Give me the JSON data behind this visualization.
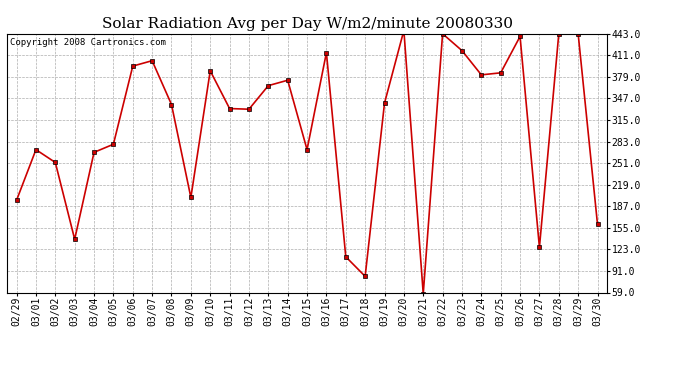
{
  "title": "Solar Radiation Avg per Day W/m2/minute 20080330",
  "copyright": "Copyright 2008 Cartronics.com",
  "dates": [
    "02/29",
    "03/01",
    "03/02",
    "03/03",
    "03/04",
    "03/05",
    "03/06",
    "03/07",
    "03/08",
    "03/09",
    "03/10",
    "03/11",
    "03/12",
    "03/13",
    "03/14",
    "03/15",
    "03/16",
    "03/17",
    "03/18",
    "03/19",
    "03/20",
    "03/21",
    "03/22",
    "03/23",
    "03/24",
    "03/25",
    "03/26",
    "03/27",
    "03/28",
    "03/29",
    "03/30"
  ],
  "values": [
    196,
    271,
    252,
    138,
    267,
    279,
    395,
    403,
    338,
    200,
    388,
    332,
    331,
    366,
    374,
    271,
    415,
    112,
    83,
    340,
    448,
    57,
    443,
    418,
    382,
    385,
    439,
    126,
    443,
    443,
    160
  ],
  "line_color": "#cc0000",
  "marker": "s",
  "marker_size": 3,
  "bg_color": "#ffffff",
  "plot_bg_color": "#ffffff",
  "grid_color": "#999999",
  "yticks": [
    59.0,
    91.0,
    123.0,
    155.0,
    187.0,
    219.0,
    251.0,
    283.0,
    315.0,
    347.0,
    379.0,
    411.0,
    443.0
  ],
  "ylim": [
    59.0,
    443.0
  ],
  "title_fontsize": 11,
  "tick_fontsize": 7,
  "copyright_fontsize": 6.5
}
